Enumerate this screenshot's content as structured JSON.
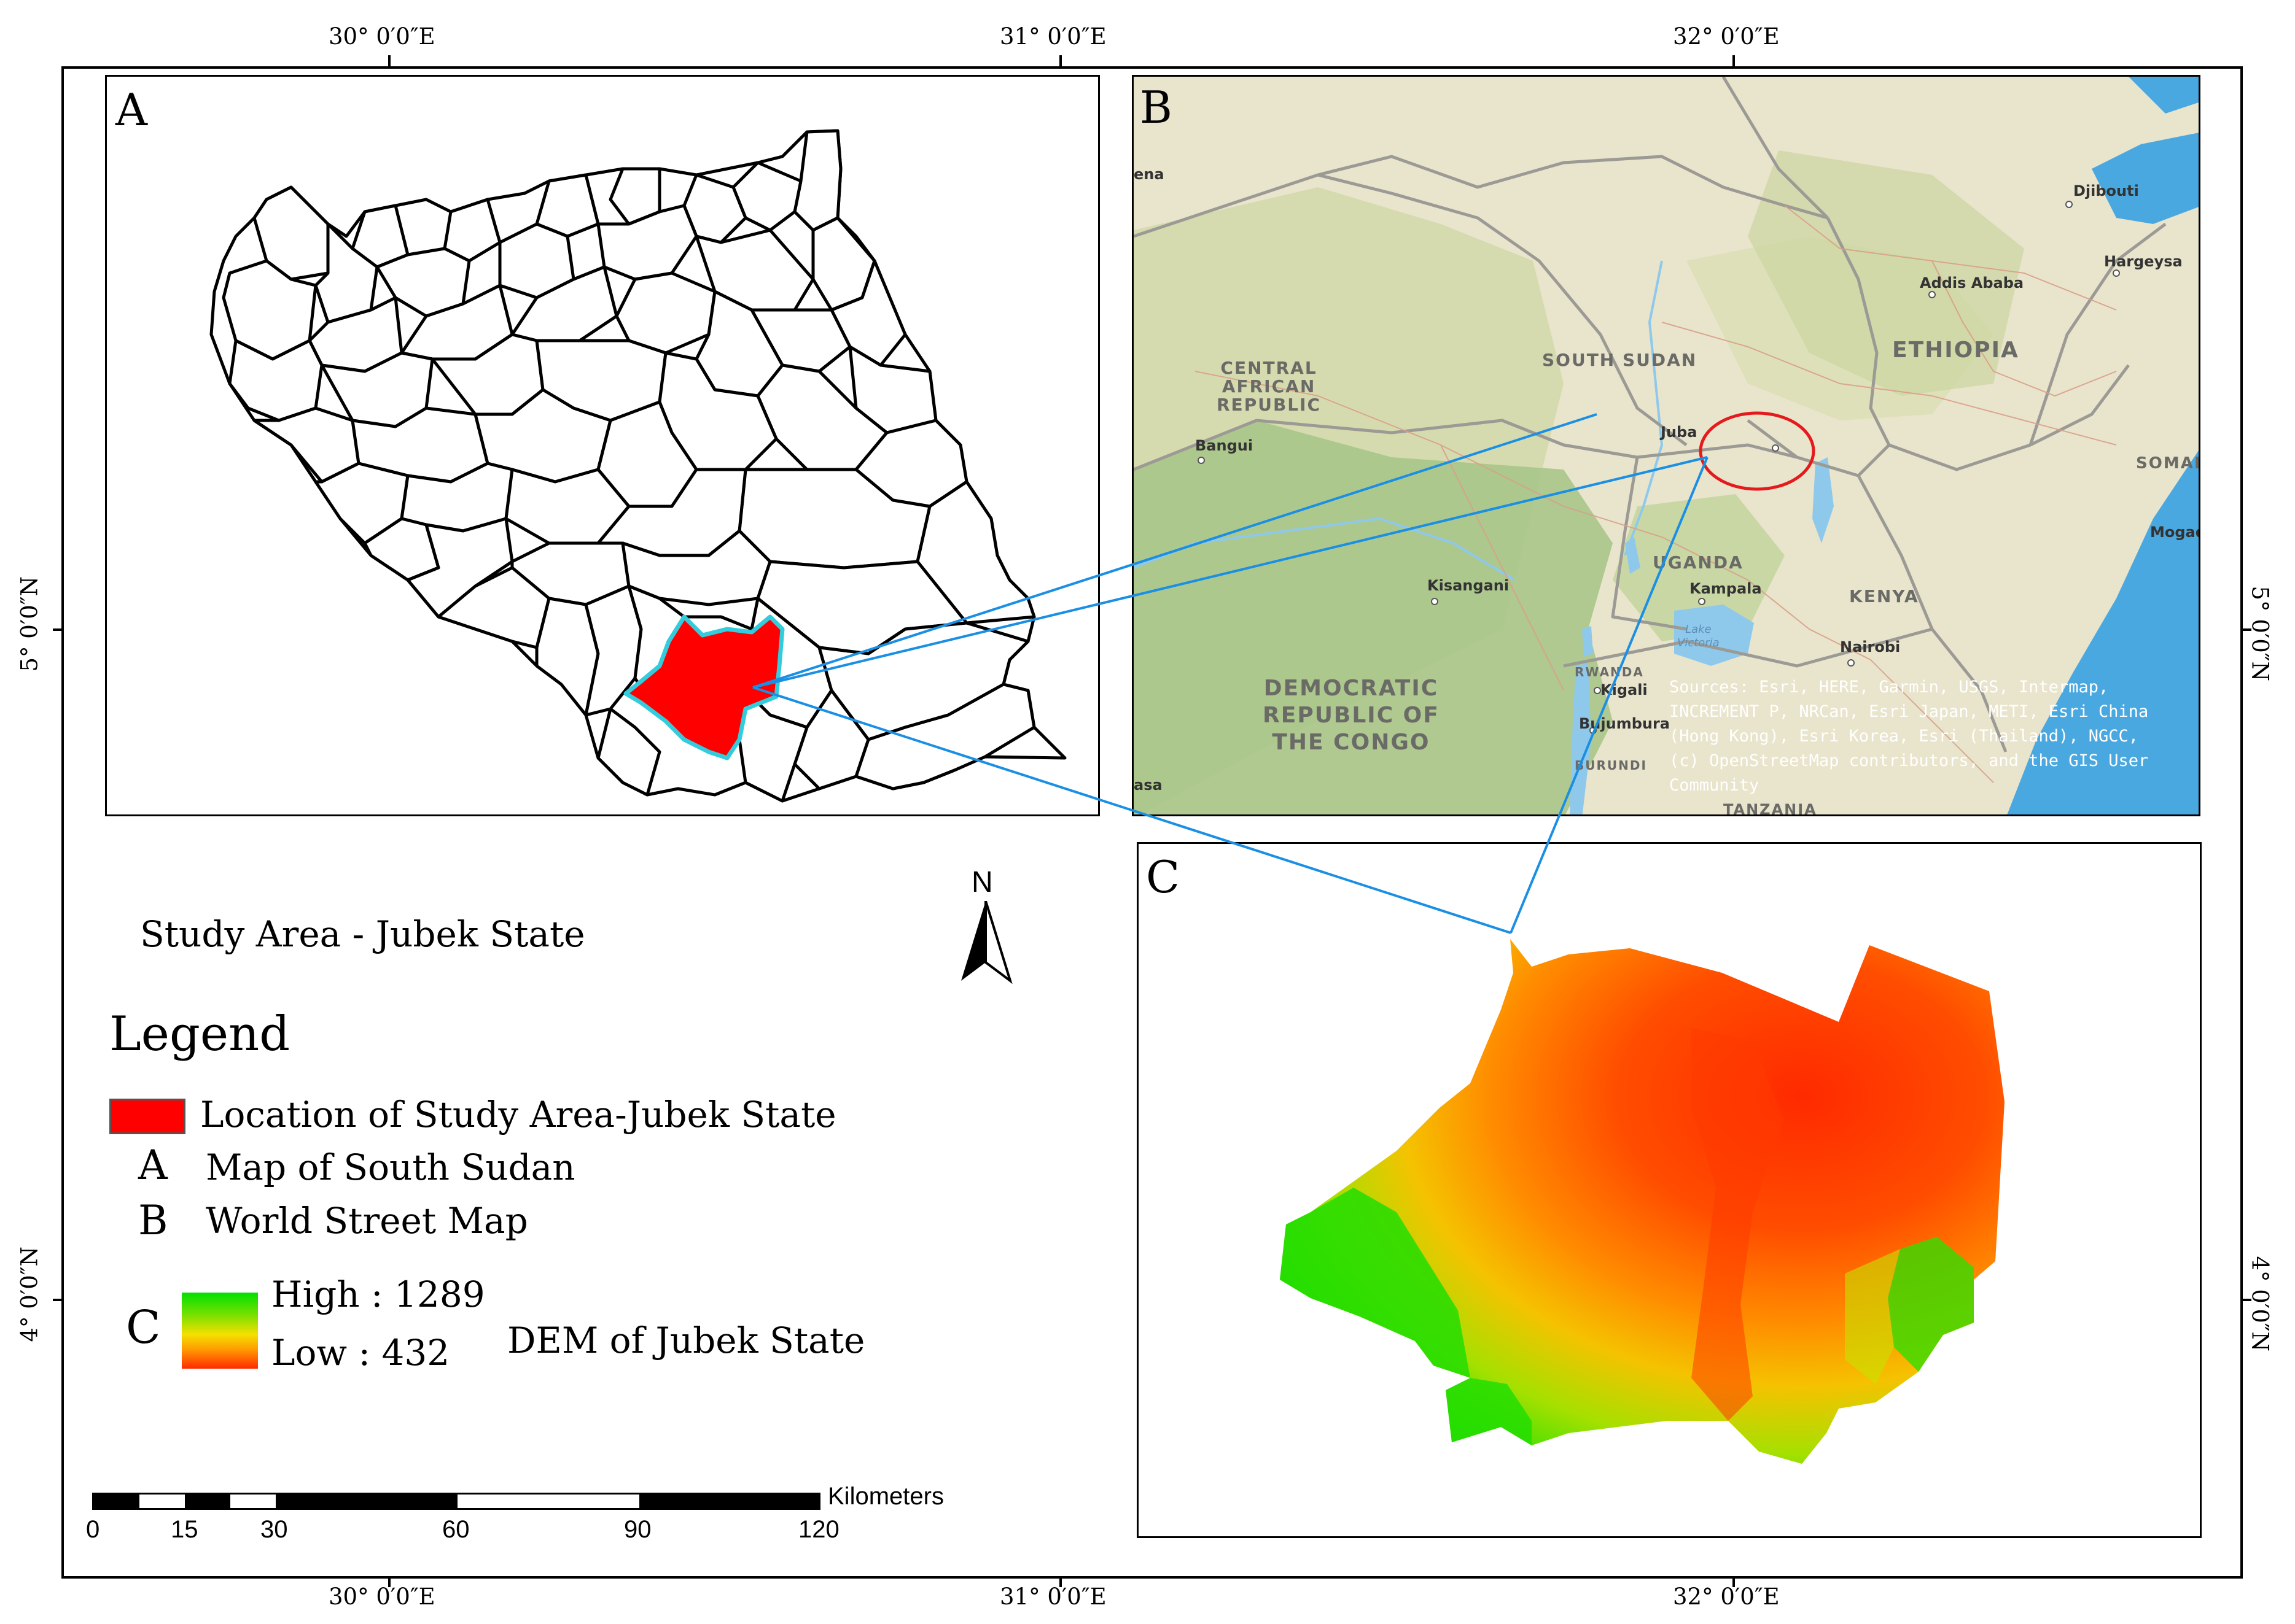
{
  "coordinates": {
    "top_lon": [
      "30° 0′0″E",
      "31° 0′0″E",
      "32° 0′0″E"
    ],
    "bottom_lon": [
      "30° 0′0″E",
      "31° 0′0″E",
      "32° 0′0″E"
    ],
    "left_lat": [
      "5° 0′0″N",
      "4° 0′0″N"
    ],
    "right_lat": [
      "5° 0′0″N",
      "4° 0′0″N"
    ]
  },
  "panels": {
    "a_letter": "A",
    "b_letter": "B",
    "c_letter": "C"
  },
  "street_map": {
    "labels": {
      "central_african_republic": [
        "CENTRAL",
        "AFRICAN",
        "REPUBLIC"
      ],
      "south_sudan": "SOUTH SUDAN",
      "ethiopia": "ETHIOPIA",
      "drc": [
        "DEMOCRATIC",
        "REPUBLIC OF",
        "THE CONGO"
      ],
      "uganda": "UGANDA",
      "kenya": "KENYA",
      "rwanda": "RWANDA",
      "burundi": "BURUNDI",
      "tanzania": "TANZANIA",
      "somal": "SOMAL",
      "lake_victoria": [
        "Lake",
        "Victoria"
      ]
    },
    "cities": {
      "juba": "Juba",
      "bangui": "Bangui",
      "kisangani": "Kisangani",
      "kampala": "Kampala",
      "nairobi": "Nairobi",
      "kigali": "Kigali",
      "bujumbura": "Bujumbura",
      "addis_ababa": "Addis Ababa",
      "djibouti": "Djibouti",
      "hargeysa": "Hargeysa",
      "mogad": "Mogad",
      "ena": "ena",
      "asa": "asa"
    },
    "sources": [
      "Sources: Esri, HERE, Garmin, USGS, Intermap,",
      "INCREMENT P, NRCan, Esri Japan, METI, Esri China",
      "(Hong Kong), Esri Korea, Esri (Thailand), NGCC,",
      "(c) OpenStreetMap contributors, and the GIS User",
      "Community"
    ]
  },
  "north_arrow": {
    "label": "N"
  },
  "study_area_title": "Study Area - Jubek State",
  "legend": {
    "title": "Legend",
    "items": [
      {
        "symbol": "",
        "label": "Location of Study Area-Jubek State"
      },
      {
        "symbol": "A",
        "label": "Map of South Sudan"
      },
      {
        "symbol": "B",
        "label": "World Street Map"
      }
    ],
    "dem": {
      "symbol": "C",
      "high": "High : 1289",
      "low": "Low : 432",
      "label": "DEM of Jubek State"
    }
  },
  "scale_bar": {
    "unit": "Kilometers",
    "ticks": [
      "0",
      "15",
      "30",
      "60",
      "90",
      "120"
    ]
  },
  "colors": {
    "study_area_fill": "#ff0000",
    "study_area_outline": "#33ccdd",
    "connector_line": "#1a8fe3",
    "juba_circle": "#e41a1c",
    "dem_high": "#00e000",
    "dem_low": "#ff2a00",
    "ocean": "#4aa8e0",
    "land": "#e8e2c8"
  }
}
